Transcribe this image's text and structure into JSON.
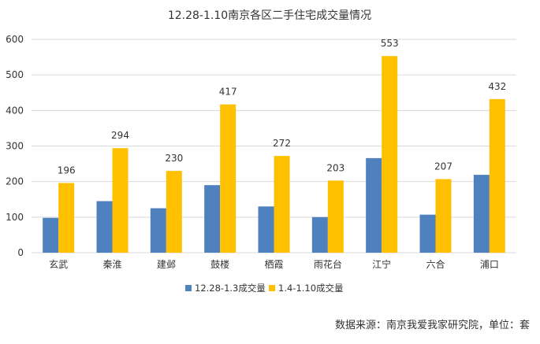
{
  "chart_data": {
    "type": "bar",
    "title": "12.28-1.10南京各区二手住宅成交量情况",
    "categories": [
      "玄武",
      "秦淮",
      "建邺",
      "鼓楼",
      "栖霞",
      "雨花台",
      "江宁",
      "六合",
      "浦口"
    ],
    "series": [
      {
        "name": "12.28-1.3成交量",
        "color": "#4e81bd",
        "values": [
          98,
          145,
          125,
          190,
          130,
          100,
          266,
          107,
          219
        ],
        "labels_shown": false
      },
      {
        "name": "1.4-1.10成交量",
        "color": "#ffc000",
        "values": [
          196,
          294,
          230,
          417,
          272,
          203,
          553,
          207,
          432
        ],
        "labels_shown": true
      }
    ],
    "yticks": [
      "0",
      "100",
      "200",
      "300",
      "400",
      "500",
      "600"
    ],
    "ylim": [
      0,
      600
    ],
    "grid": true,
    "legend": "bottom"
  },
  "footer": "数据来源：南京我爱我家研究院，单位：套"
}
